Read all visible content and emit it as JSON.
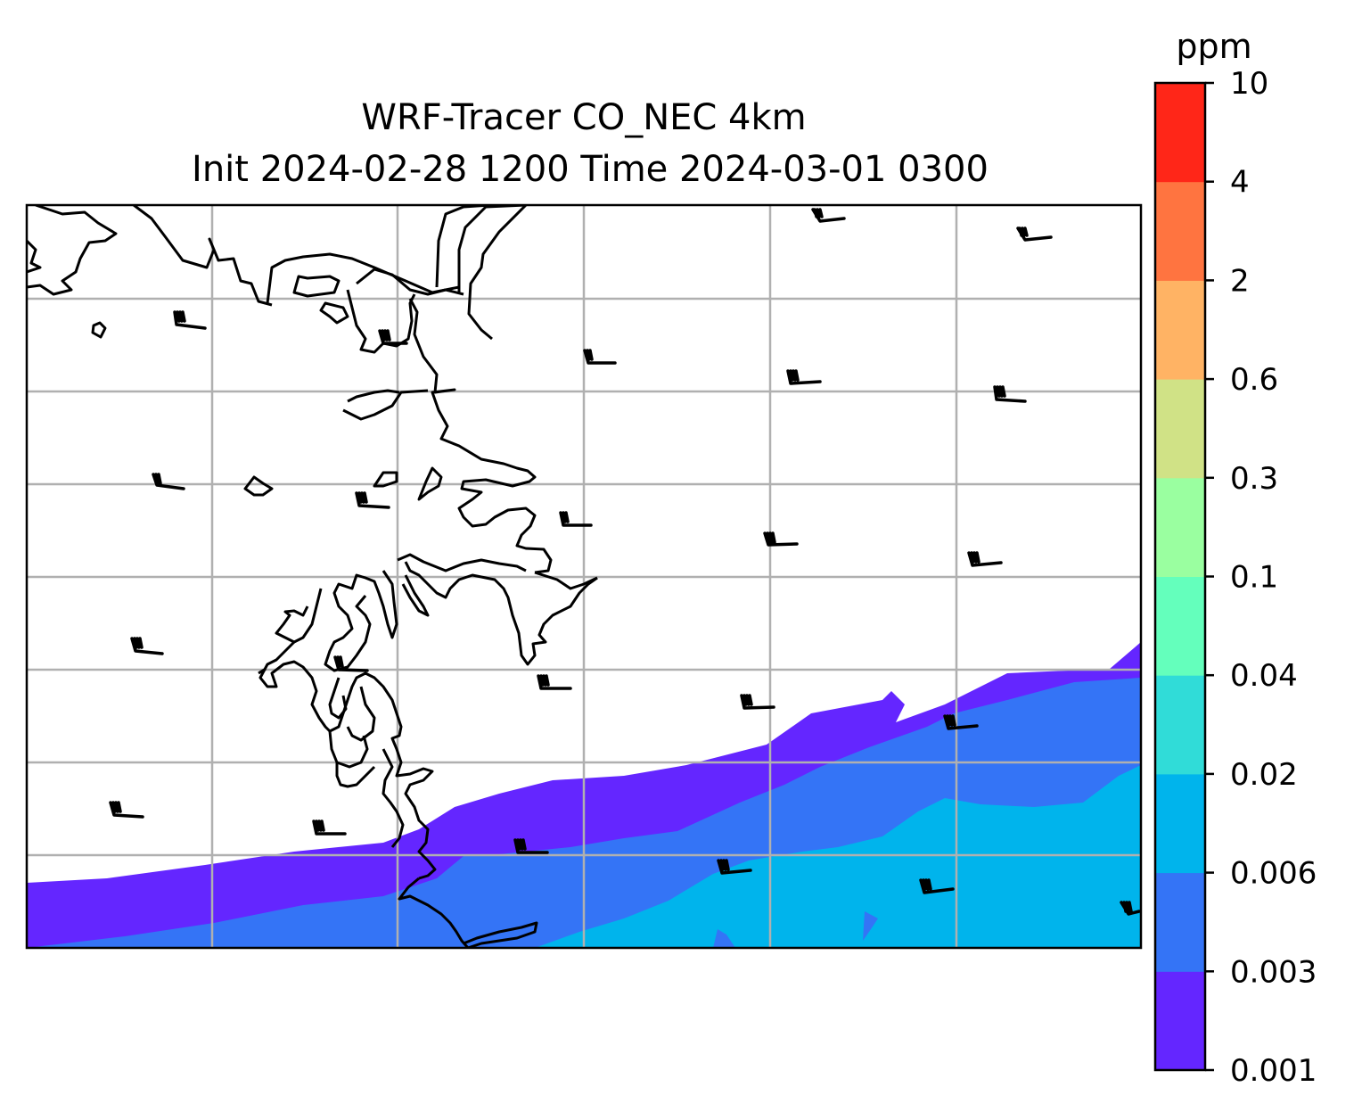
{
  "title": {
    "line1": "WRF-Tracer CO_NEC 4km",
    "line2": "Init 2024-02-28 1200 Time 2024-03-01 0300"
  },
  "colorbar": {
    "unit": "ppm",
    "ticks": [
      "0.001",
      "0.003",
      "0.006",
      "0.02",
      "0.04",
      "0.1",
      "0.3",
      "0.6",
      "2",
      "4",
      "10"
    ],
    "colors": [
      "#6426ff",
      "#3474f6",
      "#00b4ec",
      "#30dcd8",
      "#64ffbc",
      "#9affa0",
      "#d0e286",
      "#ffb364",
      "#ff7440",
      "#ff2618"
    ]
  },
  "map": {
    "colors": {
      "background": "#ffffff",
      "coastline": "#000000",
      "gridlines": "#b0b0b0",
      "wind_barbs": "#000000"
    },
    "wind_barb_count": 23
  }
}
